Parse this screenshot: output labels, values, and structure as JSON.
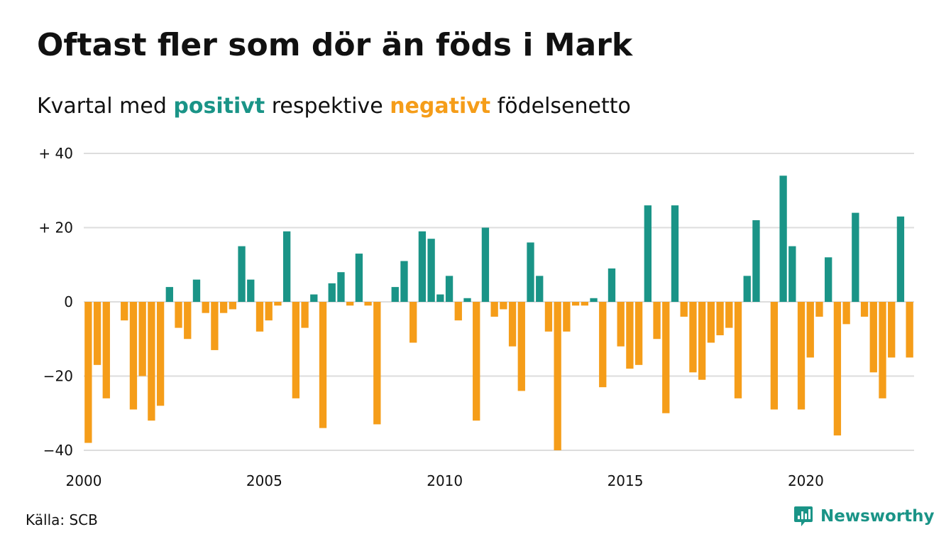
{
  "header": {
    "title": "Oftast fler som dör än föds i Mark",
    "subtitle_pre": "Kvartal med ",
    "subtitle_pos": "positivt",
    "subtitle_mid": " respektive ",
    "subtitle_neg": "negativt",
    "subtitle_post": " födelsenetto"
  },
  "footer": {
    "source": "Källa: SCB",
    "brand": "Newsworthy"
  },
  "colors": {
    "positive": "#1a9487",
    "negative": "#f59d19",
    "grid": "#dddddd"
  },
  "icons": {
    "brand_logo": "newsworthy-logo-icon"
  },
  "chart_data": {
    "type": "bar",
    "title": "Oftast fler som dör än föds i Mark",
    "subtitle": "Kvartal med positivt respektive negativt födelsenetto",
    "xlabel": "",
    "ylabel": "",
    "ylim": [
      -40,
      40
    ],
    "yticks": [
      40,
      20,
      0,
      -20,
      -40
    ],
    "ytick_labels": [
      "+ 40",
      "+ 20",
      "0",
      "−20",
      "−40"
    ],
    "x_start": "2000 Q1",
    "x_end": "2022 Q4",
    "xticks": [
      "2000",
      "2005",
      "2010",
      "2015",
      "2020"
    ],
    "grid": true,
    "legend": "none",
    "series": [
      {
        "values": [
          -38,
          -17,
          -26,
          0,
          -5,
          -29,
          -20,
          -32,
          -28,
          4,
          -7,
          -10,
          6,
          -3,
          -13,
          -3,
          -2,
          15,
          6,
          -8,
          -5,
          -1,
          19,
          -26,
          -7,
          2,
          -34,
          5,
          8,
          -1,
          13,
          -1,
          -33,
          0,
          4,
          11,
          -11,
          19,
          17,
          2,
          7,
          -5,
          1,
          -32,
          20,
          -4,
          -2,
          -12,
          -24,
          16,
          7,
          -8,
          -40,
          -8,
          -1,
          -1,
          1,
          -23,
          9,
          -12,
          -18,
          -17,
          26,
          -10,
          -30,
          26,
          -4,
          -19,
          -21,
          -11,
          -9,
          -7,
          -26,
          7,
          22,
          0,
          -29,
          34,
          15,
          -29,
          -15,
          -4,
          12,
          -36,
          -6,
          24,
          -4,
          -19,
          -26,
          -15,
          23,
          -15
        ]
      }
    ]
  }
}
